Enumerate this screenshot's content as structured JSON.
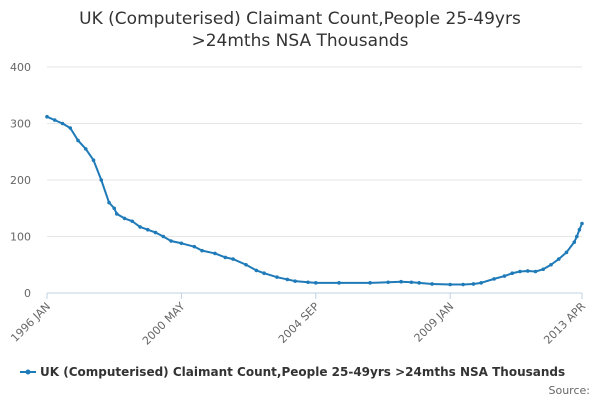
{
  "chart_data": {
    "type": "line",
    "title_line1": "UK (Computerised) Claimant Count,People 25-49yrs",
    "title_line2": ">24mths NSA Thousands",
    "xlabel": "",
    "ylabel": "",
    "ylim": [
      0,
      400
    ],
    "yticks": [
      "0",
      "100",
      "200",
      "300",
      "400"
    ],
    "xticks": [
      {
        "label": "1996 JAN",
        "date": "1996-01"
      },
      {
        "label": "2000 MAY",
        "date": "2000-05"
      },
      {
        "label": "2004 SEP",
        "date": "2004-09"
      },
      {
        "label": "2009 JAN",
        "date": "2009-01"
      },
      {
        "label": "2013 APR",
        "date": "2013-04"
      }
    ],
    "grid": "horizontal",
    "legend_position": "bottom",
    "series": [
      {
        "name": "UK (Computerised) Claimant Count,People 25-49yrs >24mths NSA Thousands",
        "color": "#1f7ab8",
        "points": [
          [
            "1996-01",
            312
          ],
          [
            "1996-04",
            306
          ],
          [
            "1996-07",
            300
          ],
          [
            "1996-10",
            292
          ],
          [
            "1997-01",
            270
          ],
          [
            "1997-04",
            255
          ],
          [
            "1997-07",
            235
          ],
          [
            "1997-10",
            200
          ],
          [
            "1998-01",
            160
          ],
          [
            "1998-03",
            150
          ],
          [
            "1998-04",
            140
          ],
          [
            "1998-07",
            132
          ],
          [
            "1998-10",
            127
          ],
          [
            "1999-01",
            117
          ],
          [
            "1999-04",
            112
          ],
          [
            "1999-07",
            107
          ],
          [
            "1999-10",
            100
          ],
          [
            "2000-01",
            92
          ],
          [
            "2000-05",
            88
          ],
          [
            "2000-10",
            82
          ],
          [
            "2001-01",
            75
          ],
          [
            "2001-06",
            70
          ],
          [
            "2001-10",
            63
          ],
          [
            "2002-01",
            60
          ],
          [
            "2002-06",
            50
          ],
          [
            "2002-10",
            40
          ],
          [
            "2003-01",
            35
          ],
          [
            "2003-06",
            28
          ],
          [
            "2003-10",
            24
          ],
          [
            "2004-01",
            21
          ],
          [
            "2004-06",
            19
          ],
          [
            "2004-09",
            18
          ],
          [
            "2005-06",
            18
          ],
          [
            "2006-06",
            18
          ],
          [
            "2007-01",
            19
          ],
          [
            "2007-06",
            20
          ],
          [
            "2007-10",
            19
          ],
          [
            "2008-01",
            18
          ],
          [
            "2008-06",
            16
          ],
          [
            "2009-01",
            15
          ],
          [
            "2009-06",
            15
          ],
          [
            "2009-10",
            16
          ],
          [
            "2010-01",
            18
          ],
          [
            "2010-06",
            25
          ],
          [
            "2010-10",
            30
          ],
          [
            "2011-01",
            35
          ],
          [
            "2011-04",
            38
          ],
          [
            "2011-07",
            39
          ],
          [
            "2011-10",
            38
          ],
          [
            "2012-01",
            42
          ],
          [
            "2012-04",
            50
          ],
          [
            "2012-07",
            60
          ],
          [
            "2012-10",
            72
          ],
          [
            "2013-01",
            90
          ],
          [
            "2013-02",
            100
          ],
          [
            "2013-03",
            112
          ],
          [
            "2013-04",
            123
          ]
        ]
      }
    ],
    "source_label": "Source:"
  }
}
